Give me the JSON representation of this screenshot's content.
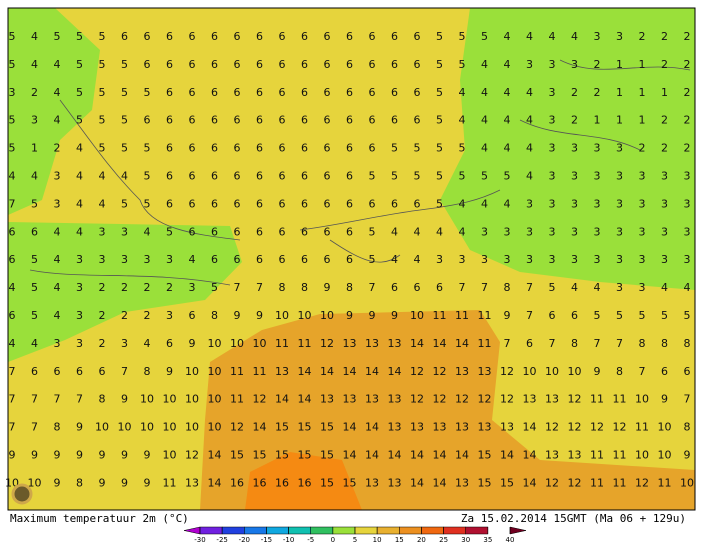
{
  "map": {
    "title": "Maximum temperatuur 2m (°C)",
    "valid": "Za 15.02.2014 15GMT (Ma 06 + 129u)",
    "grid": {
      "rows": [
        [
          5,
          4,
          5,
          5,
          5,
          6,
          6,
          6,
          6,
          6,
          6,
          6,
          6,
          6,
          6,
          6,
          6,
          6,
          6,
          5,
          5,
          5,
          4,
          4,
          4,
          4,
          3,
          3,
          2,
          2,
          2
        ],
        [
          5,
          4,
          4,
          5,
          5,
          5,
          6,
          6,
          6,
          6,
          6,
          6,
          6,
          6,
          6,
          6,
          6,
          6,
          6,
          5,
          5,
          4,
          4,
          3,
          3,
          3,
          2,
          1,
          1,
          2,
          2
        ],
        [
          3,
          2,
          4,
          5,
          5,
          5,
          5,
          6,
          6,
          6,
          6,
          6,
          6,
          6,
          6,
          6,
          6,
          6,
          6,
          5,
          4,
          4,
          4,
          4,
          3,
          2,
          2,
          1,
          1,
          1,
          2
        ],
        [
          5,
          3,
          4,
          5,
          5,
          5,
          6,
          6,
          6,
          6,
          6,
          6,
          6,
          6,
          6,
          6,
          6,
          6,
          6,
          5,
          4,
          4,
          4,
          4,
          3,
          2,
          1,
          1,
          1,
          2,
          2
        ],
        [
          5,
          1,
          2,
          4,
          5,
          5,
          5,
          6,
          6,
          6,
          6,
          6,
          6,
          6,
          6,
          6,
          6,
          5,
          5,
          5,
          5,
          4,
          4,
          4,
          3,
          3,
          3,
          3,
          2,
          2,
          2
        ],
        [
          4,
          4,
          3,
          4,
          4,
          4,
          5,
          6,
          6,
          6,
          6,
          6,
          6,
          6,
          6,
          6,
          5,
          5,
          5,
          5,
          5,
          5,
          5,
          4,
          3,
          3,
          3,
          3,
          3,
          3,
          3
        ],
        [
          7,
          5,
          3,
          4,
          4,
          5,
          5,
          6,
          6,
          6,
          6,
          6,
          6,
          6,
          6,
          6,
          6,
          6,
          6,
          5,
          4,
          4,
          4,
          3,
          3,
          3,
          3,
          3,
          3,
          3,
          3
        ],
        [
          6,
          6,
          4,
          4,
          3,
          3,
          4,
          5,
          6,
          6,
          6,
          6,
          6,
          6,
          6,
          6,
          5,
          4,
          4,
          4,
          4,
          3,
          3,
          3,
          3,
          3,
          3,
          3,
          3,
          3,
          3
        ],
        [
          6,
          5,
          4,
          3,
          3,
          3,
          3,
          3,
          4,
          6,
          6,
          6,
          6,
          6,
          6,
          6,
          5,
          4,
          4,
          3,
          3,
          3,
          3,
          3,
          3,
          3,
          3,
          3,
          3,
          3,
          3
        ],
        [
          4,
          5,
          4,
          3,
          2,
          2,
          2,
          2,
          3,
          5,
          7,
          7,
          8,
          8,
          9,
          8,
          7,
          6,
          6,
          6,
          7,
          7,
          8,
          7,
          5,
          4,
          4,
          3,
          3,
          4,
          4
        ],
        [
          6,
          5,
          4,
          3,
          2,
          2,
          2,
          3,
          6,
          8,
          9,
          9,
          10,
          10,
          10,
          9,
          9,
          9,
          10,
          11,
          11,
          11,
          9,
          7,
          6,
          6,
          5,
          5,
          5,
          5,
          5
        ],
        [
          4,
          4,
          3,
          3,
          2,
          3,
          4,
          6,
          9,
          10,
          10,
          10,
          11,
          11,
          12,
          13,
          13,
          13,
          14,
          14,
          14,
          11,
          7,
          6,
          7,
          8,
          7,
          7,
          8,
          8,
          8
        ],
        [
          7,
          6,
          6,
          6,
          6,
          7,
          8,
          9,
          10,
          10,
          11,
          11,
          13,
          14,
          14,
          14,
          14,
          14,
          12,
          12,
          13,
          13,
          12,
          10,
          10,
          10,
          9,
          8,
          7,
          6,
          6
        ],
        [
          7,
          7,
          7,
          7,
          8,
          9,
          10,
          10,
          10,
          10,
          11,
          12,
          14,
          14,
          13,
          13,
          13,
          13,
          12,
          12,
          12,
          12,
          12,
          13,
          13,
          12,
          11,
          11,
          10,
          9,
          7
        ],
        [
          7,
          7,
          8,
          9,
          10,
          10,
          10,
          10,
          10,
          10,
          12,
          14,
          15,
          15,
          15,
          14,
          14,
          13,
          13,
          13,
          13,
          13,
          13,
          14,
          12,
          12,
          12,
          12,
          11,
          10,
          8
        ],
        [
          9,
          9,
          9,
          9,
          9,
          9,
          9,
          10,
          12,
          14,
          15,
          15,
          15,
          15,
          15,
          14,
          14,
          14,
          14,
          14,
          14,
          15,
          14,
          14,
          13,
          13,
          11,
          11,
          10,
          10,
          9
        ],
        [
          10,
          10,
          9,
          8,
          9,
          9,
          9,
          11,
          13,
          14,
          16,
          16,
          16,
          16,
          15,
          15,
          13,
          13,
          14,
          14,
          13,
          15,
          15,
          14,
          12,
          12,
          11,
          11,
          12,
          11,
          10
        ]
      ]
    },
    "colorbar": {
      "ticks": [
        -30,
        -25,
        -20,
        -15,
        -10,
        -5,
        0,
        5,
        10,
        15,
        20,
        25,
        30,
        35,
        40
      ],
      "colors": [
        "#b000d0",
        "#7020e0",
        "#2040e0",
        "#1878e8",
        "#10a8e0",
        "#10c0b0",
        "#30c060",
        "#9ae03a",
        "#e6d43c",
        "#e8b030",
        "#ec9020",
        "#f06810",
        "#e03020",
        "#b01030",
        "#700020"
      ]
    }
  }
}
